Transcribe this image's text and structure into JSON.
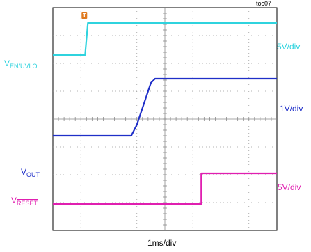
{
  "chart_data": {
    "type": "line",
    "title": "",
    "figure_id": "toc07",
    "xlabel": "1ms/div",
    "grid": true,
    "divisions": {
      "x": 8,
      "y": 8
    },
    "trigger_marker": "T",
    "series": [
      {
        "name": "V_EN/UVLO",
        "label_main": "V",
        "label_sub": "EN/UVLO",
        "color": "#2fd3de",
        "scale": "5V/div",
        "x_div": [
          0,
          1.15,
          1.25,
          8
        ],
        "y_div": [
          6.3,
          6.3,
          7.45,
          7.45
        ]
      },
      {
        "name": "V_OUT",
        "label_main": "V",
        "label_sub": "OUT",
        "color": "#1f2fc8",
        "scale": "1V/div",
        "x_div": [
          0,
          2.8,
          3.0,
          3.5,
          3.65,
          8
        ],
        "y_div": [
          3.4,
          3.4,
          3.8,
          5.3,
          5.45,
          5.45
        ]
      },
      {
        "name": "V_RESET",
        "label_main": "V",
        "label_sub": "RESET",
        "color": "#e01fb0",
        "scale": "5V/div",
        "x_div": [
          0,
          5.3,
          5.3,
          8
        ],
        "y_div": [
          0.95,
          0.95,
          2.05,
          2.05
        ]
      }
    ]
  },
  "labels": {
    "v_main": "V",
    "en_sub": "EN/UVLO",
    "out_sub": "OUT",
    "reset_sub": "RESET",
    "scale_en": "5V/div",
    "scale_out": "1V/div",
    "scale_reset": "5V/div",
    "xlabel": "1ms/div",
    "figure_id": "toc07",
    "trigger": "T"
  }
}
